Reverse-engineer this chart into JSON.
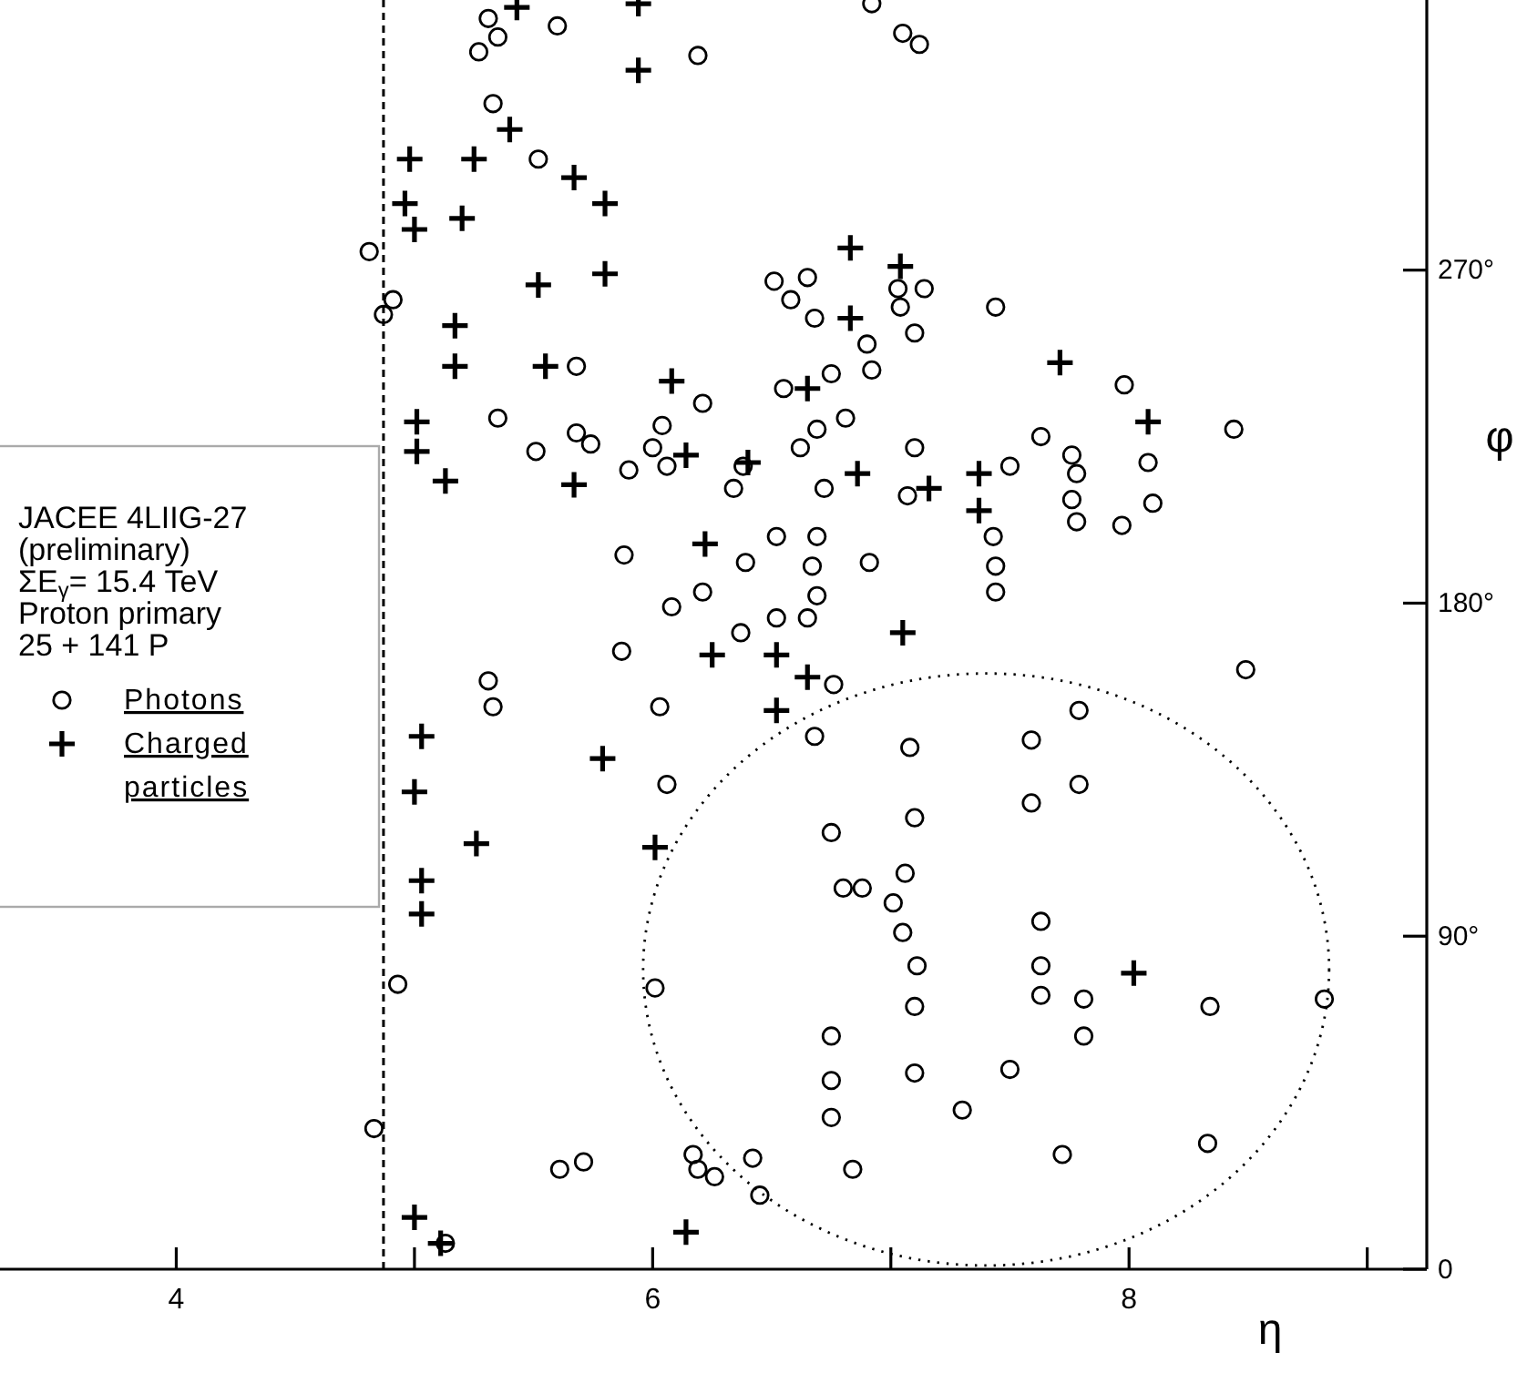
{
  "chart_data": {
    "type": "scatter",
    "xlabel": "η",
    "ylabel": "φ",
    "xlim": [
      3.26,
      9.25
    ],
    "ylim": [
      0,
      343
    ],
    "xticks": [
      4,
      {
        "value": 5,
        "label": null
      },
      6,
      {
        "value": 7,
        "label": null
      },
      8,
      {
        "value": 9,
        "label": null
      }
    ],
    "yticks": [
      0,
      {
        "value": 90,
        "label": "90°"
      },
      {
        "value": 180,
        "label": "180°"
      },
      {
        "value": 270,
        "label": "270°"
      }
    ],
    "legend": "left",
    "annotations": [
      "JACEE 4LIIG-27",
      "(preliminary)",
      "ΣE$_{γ}$= 15.4 TeV",
      "Proton primary",
      "25 + 141 P"
    ],
    "ref_lines": [
      {
        "axis": "x",
        "value": 4.87,
        "line_style": "dashed",
        "color": "#000000"
      }
    ],
    "series": [
      {
        "name": "Photons",
        "color": "#000000",
        "marker": "circle",
        "x": [
          5.31,
          5.35,
          5.27,
          5.6,
          5.33,
          5.52,
          4.81,
          4.91,
          4.87,
          5.68,
          5.35,
          5.68,
          5.74,
          5.51,
          6.04,
          6.0,
          6.06,
          5.9,
          5.88,
          6.08,
          6.19,
          6.92,
          7.05,
          7.12,
          6.51,
          6.65,
          6.58,
          6.68,
          7.03,
          7.14,
          7.04,
          7.1,
          6.9,
          7.44,
          6.75,
          6.92,
          6.55,
          6.21,
          6.81,
          6.69,
          6.62,
          7.1,
          7.98,
          7.63,
          7.76,
          7.78,
          7.76,
          7.78,
          7.97,
          8.08,
          8.1,
          7.5,
          6.38,
          6.34,
          6.72,
          7.07,
          7.43,
          7.44,
          7.44,
          6.52,
          6.69,
          6.67,
          6.91,
          6.39,
          6.69,
          6.21,
          6.52,
          6.65,
          6.37,
          5.87,
          5.31,
          5.33,
          6.03,
          6.06,
          4.93,
          4.83,
          5.61,
          5.71,
          6.01,
          5.13,
          6.76,
          6.68,
          7.08,
          7.59,
          7.79,
          7.79,
          7.59,
          7.1,
          6.75,
          6.8,
          6.88,
          7.06,
          7.01,
          7.05,
          7.11,
          7.1,
          7.63,
          7.63,
          7.63,
          7.81,
          7.81,
          8.34,
          6.75,
          6.75,
          7.1,
          7.5,
          6.75,
          7.3,
          7.72,
          8.33,
          6.84,
          6.17,
          6.19,
          6.26,
          6.42,
          6.45,
          8.44,
          8.49,
          8.82
        ],
        "values": [
          338,
          333,
          329,
          336,
          315,
          300,
          275,
          262,
          258,
          244,
          230,
          226,
          223,
          221,
          228,
          222,
          217,
          216,
          193,
          179,
          328,
          342,
          334,
          331,
          267,
          268,
          262,
          257,
          265,
          265,
          260,
          253,
          250,
          260,
          242,
          243,
          238,
          234,
          230,
          227,
          222,
          222,
          239,
          225,
          220,
          215,
          208,
          202,
          201,
          218,
          207,
          217,
          217,
          211,
          211,
          209,
          198,
          190,
          183,
          198,
          198,
          190,
          191,
          191,
          182,
          183,
          176,
          176,
          172,
          167,
          159,
          152,
          152,
          131,
          77,
          38,
          27,
          29,
          76,
          7,
          158,
          144,
          141,
          143,
          151,
          131,
          126,
          122,
          118,
          103,
          103,
          107,
          99,
          91,
          82,
          71,
          94,
          82,
          74,
          73,
          63,
          71,
          63,
          51,
          53,
          54,
          41,
          43,
          31,
          34,
          27,
          31,
          27,
          25,
          30,
          20,
          227,
          162,
          73
        ]
      },
      {
        "name": "Charged particles",
        "color": "#000000",
        "marker": "cross",
        "x": [
          5.43,
          5.94,
          5.94,
          5.4,
          4.98,
          5.25,
          5.67,
          5.8,
          4.96,
          5.0,
          5.2,
          5.52,
          5.8,
          5.17,
          5.17,
          5.55,
          6.08,
          5.01,
          5.01,
          5.13,
          5.67,
          6.14,
          6.83,
          7.04,
          6.83,
          6.65,
          7.71,
          8.08,
          6.4,
          6.86,
          7.16,
          7.37,
          7.37,
          6.22,
          7.05,
          6.25,
          6.52,
          6.65,
          6.52,
          5.03,
          5.0,
          5.26,
          5.79,
          6.01,
          5.03,
          5.03,
          5.0,
          5.11,
          6.14,
          8.02
        ],
        "values": [
          341,
          342,
          324,
          308,
          300,
          300,
          295,
          288,
          288,
          281,
          284,
          266,
          269,
          255,
          244,
          244,
          240,
          229,
          221,
          213,
          212,
          220,
          276,
          271,
          257,
          238,
          245,
          229,
          218,
          215,
          211,
          215,
          205,
          196,
          172,
          166,
          166,
          160,
          151,
          144,
          129,
          115,
          138,
          114,
          105,
          96,
          14,
          7,
          10,
          80
        ]
      }
    ]
  }
}
